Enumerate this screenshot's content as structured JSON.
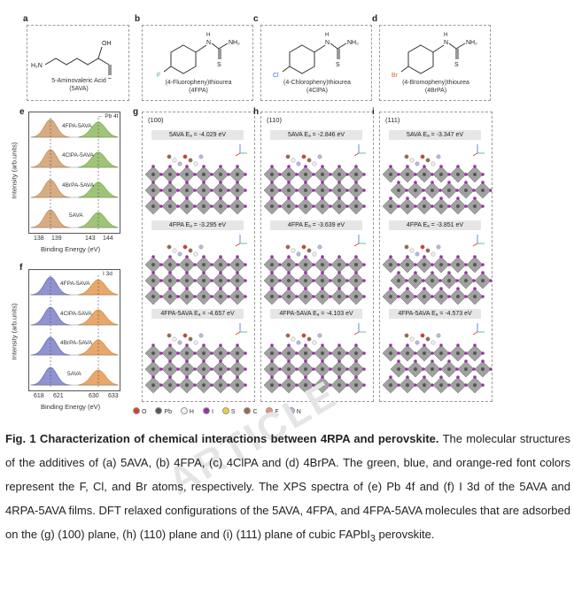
{
  "panels": {
    "a": {
      "letter": "a",
      "name": "5-Aminovaleric Acid",
      "abbr": "(5AVA)",
      "atoms": {
        "oh": "OH",
        "nh2": "H₂N",
        "o": "O"
      }
    },
    "b": {
      "letter": "b",
      "name": "(4-Fluoropheny)thiourea",
      "abbr": "(4FPA)",
      "halogen": "F",
      "halogen_color": "#3cb371"
    },
    "c": {
      "letter": "c",
      "name": "(4-Chloropheny)thiourea",
      "abbr": "(4ClPA)",
      "halogen": "Cl",
      "halogen_color": "#3a6fd8"
    },
    "d": {
      "letter": "d",
      "name": "(4-Bromopheny)thiourea",
      "abbr": "(4BrPA)",
      "halogen": "Br",
      "halogen_color": "#e0603a"
    },
    "thiourea_atoms": {
      "h": "H",
      "n": "N",
      "nh2": "NH₂",
      "s": "S"
    }
  },
  "xps_e": {
    "letter": "e",
    "peak_tag": "Pb 4f",
    "samples": [
      "4FPA-5AVA",
      "4ClPA-5AVA",
      "4BrPA-5AVA",
      "5AVA"
    ],
    "xlabel": "Binding Energy (eV)",
    "ylabel": "Intensity (arb.units)",
    "ticks": [
      "138",
      "139",
      "143",
      "144"
    ],
    "colors": {
      "left": "#c9905a",
      "right": "#7fb04a"
    }
  },
  "xps_f": {
    "letter": "f",
    "peak_tag": "I 3d",
    "samples": [
      "4FPA-5AVA",
      "4ClPA-5AVA",
      "4BrPA-5AVA",
      "5AVA"
    ],
    "xlabel": "Binding Energy (eV)",
    "ylabel": "Intensity (arb.units)",
    "ticks": [
      "618",
      "621",
      "630",
      "633"
    ],
    "colors": {
      "left": "#6a6fc0",
      "right": "#e08a3a"
    }
  },
  "dft": {
    "g": {
      "letter": "g",
      "plane": "(100)",
      "energies": [
        "5AVA  Eₐ = -4.029 eV",
        "4FPA  Eₐ = -3.295 eV",
        "4FPA-5AVA  Eₐ = -4.657 eV"
      ]
    },
    "h": {
      "letter": "h",
      "plane": "(110)",
      "energies": [
        "5AVA  Eₐ = -2.846 eV",
        "4FPA  Eₐ = -3.639 eV",
        "4FPA-5AVA  Eₐ = -4.103 eV"
      ]
    },
    "i": {
      "letter": "i",
      "plane": "(111)",
      "energies": [
        "5AVA  Eₐ = -3.347 eV",
        "4FPA  Eₐ = -3.851 eV",
        "4FPA-5AVA  Eₐ = -4.573 eV"
      ]
    },
    "axes": {
      "a": "a",
      "b": "b",
      "c": "c"
    }
  },
  "legend": [
    {
      "label": "O",
      "color": "#e03a2a"
    },
    {
      "label": "Pb",
      "color": "#555555"
    },
    {
      "label": "H",
      "color": "#f3f3f3"
    },
    {
      "label": "I",
      "color": "#9b30a8"
    },
    {
      "label": "S",
      "color": "#e6d040"
    },
    {
      "label": "C",
      "color": "#9a6a4a"
    },
    {
      "label": "F",
      "color": "#f08a80"
    },
    {
      "label": "N",
      "color": "#b8b8e8"
    }
  ],
  "caption": {
    "title": "Fig. 1 Characterization of chemical interactions between 4RPA and perovskite.",
    "body": " The molecular structures of the additives of (a) 5AVA, (b) 4FPA, (c) 4ClPA and (d) 4BrPA. The green, blue, and orange-red font colors represent the F, Cl, and Br atoms, respectively. The XPS spectra of (e) Pb 4f and (f) I 3d of the 5AVA and 4RPA-5AVA films. DFT relaxed configurations of the 5AVA, 4FPA, and 4FPA-5AVA molecules that are adsorbed on the (g) (100) plane, (h) (110) plane and (i) (111) plane of cubic FAPbI",
    "sub": "3",
    "tail": " perovskite."
  },
  "watermark": "ARTICLE"
}
